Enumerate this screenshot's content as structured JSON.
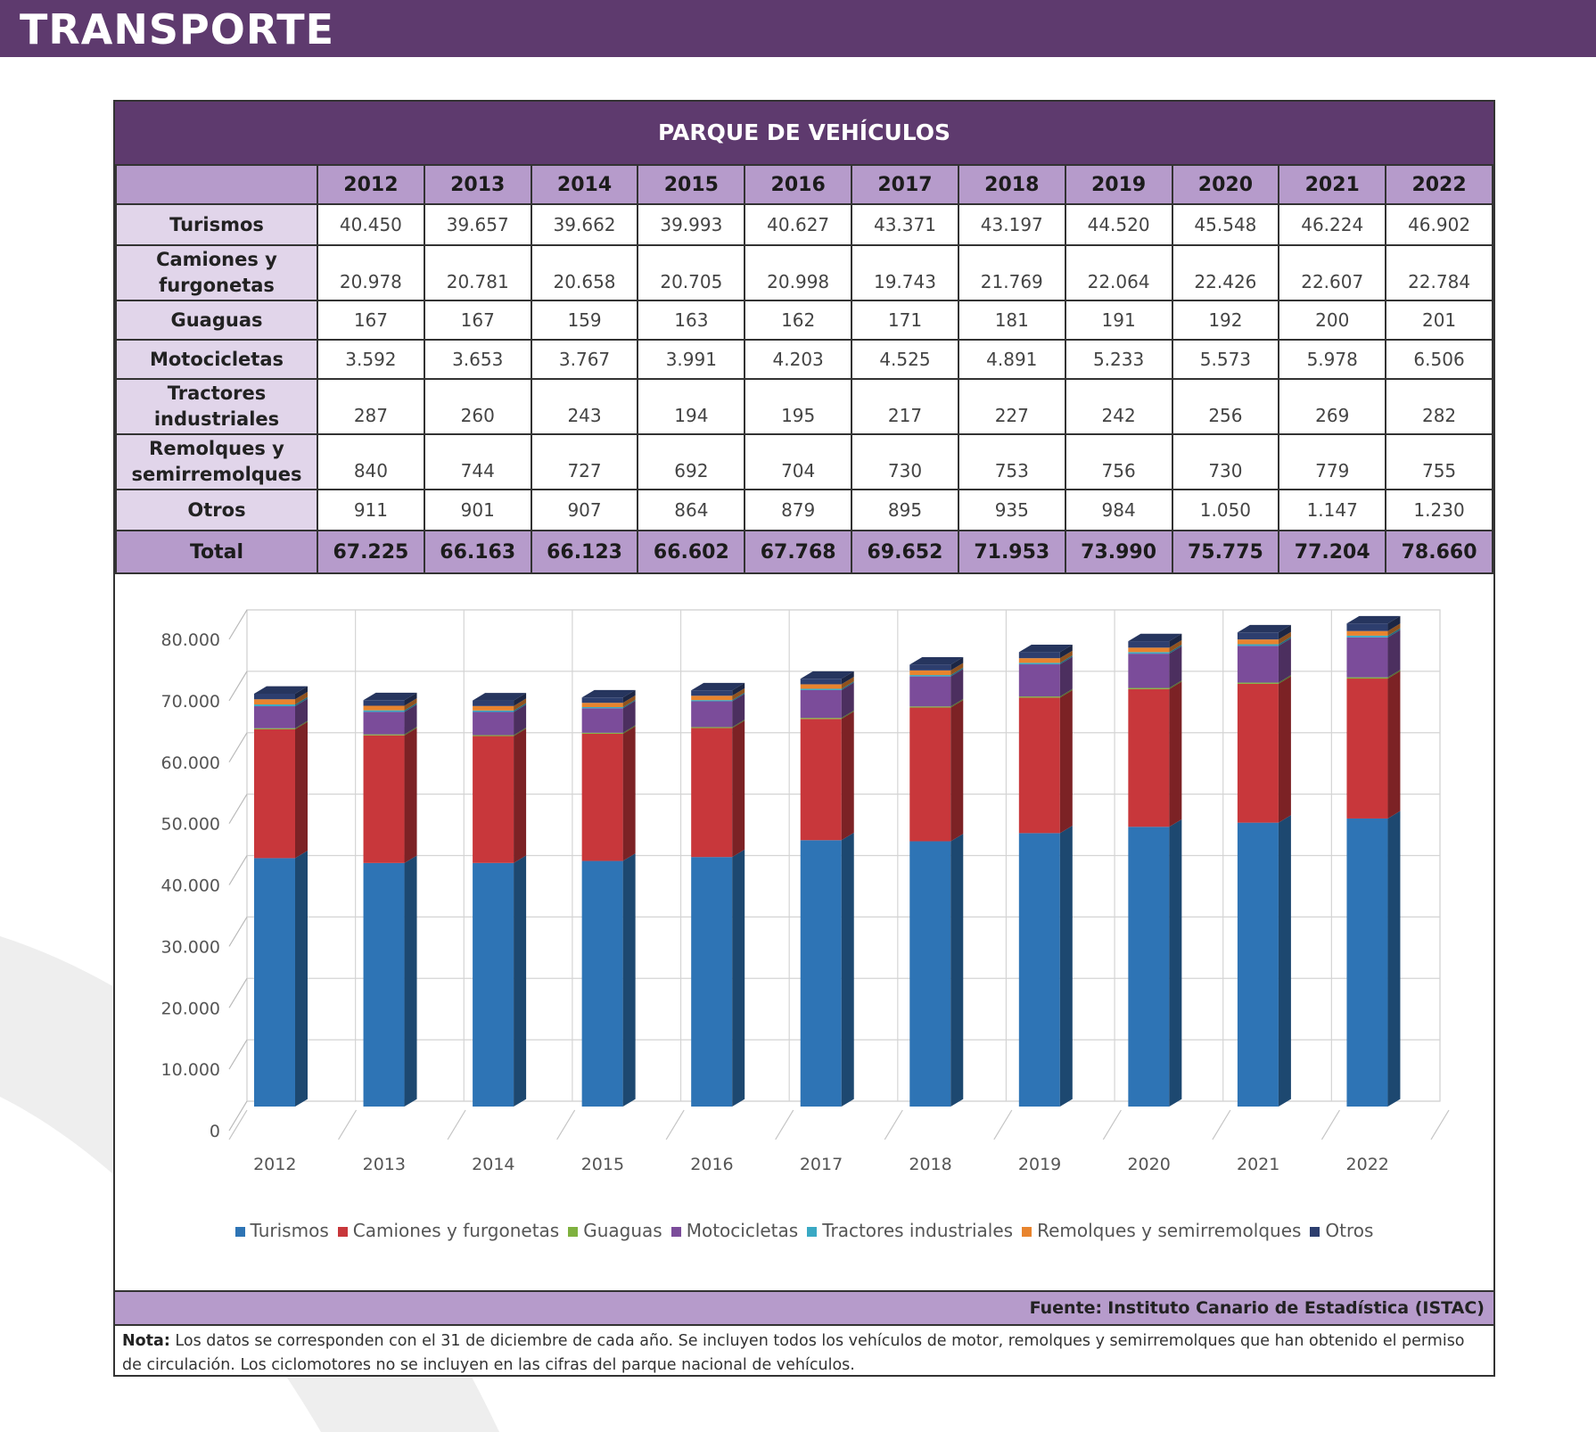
{
  "header": {
    "title": "TRANSPORTE"
  },
  "table": {
    "title": "PARQUE DE VEHÍCULOS",
    "years": [
      "2012",
      "2013",
      "2014",
      "2015",
      "2016",
      "2017",
      "2018",
      "2019",
      "2020",
      "2021",
      "2022"
    ],
    "rows": [
      {
        "label": "Turismos",
        "values": [
          "40.450",
          "39.657",
          "39.662",
          "39.993",
          "40.627",
          "43.371",
          "43.197",
          "44.520",
          "45.548",
          "46.224",
          "46.902"
        ]
      },
      {
        "label": "Camiones y furgonetas",
        "values": [
          "20.978",
          "20.781",
          "20.658",
          "20.705",
          "20.998",
          "19.743",
          "21.769",
          "22.064",
          "22.426",
          "22.607",
          "22.784"
        ]
      },
      {
        "label": "Guaguas",
        "values": [
          "167",
          "167",
          "159",
          "163",
          "162",
          "171",
          "181",
          "191",
          "192",
          "200",
          "201"
        ]
      },
      {
        "label": "Motocicletas",
        "values": [
          "3.592",
          "3.653",
          "3.767",
          "3.991",
          "4.203",
          "4.525",
          "4.891",
          "5.233",
          "5.573",
          "5.978",
          "6.506"
        ]
      },
      {
        "label": "Tractores industriales",
        "values": [
          "287",
          "260",
          "243",
          "194",
          "195",
          "217",
          "227",
          "242",
          "256",
          "269",
          "282"
        ]
      },
      {
        "label": "Remolques y semirremolques",
        "values": [
          "840",
          "744",
          "727",
          "692",
          "704",
          "730",
          "753",
          "756",
          "730",
          "779",
          "755"
        ]
      },
      {
        "label": "Otros",
        "values": [
          "911",
          "901",
          "907",
          "864",
          "879",
          "895",
          "935",
          "984",
          "1.050",
          "1.147",
          "1.230"
        ]
      }
    ],
    "total": {
      "label": "Total",
      "values": [
        "67.225",
        "66.163",
        "66.123",
        "66.602",
        "67.768",
        "69.652",
        "71.953",
        "73.990",
        "75.775",
        "77.204",
        "78.660"
      ]
    }
  },
  "chart_data": {
    "type": "bar",
    "stacked": true,
    "categories": [
      "2012",
      "2013",
      "2014",
      "2015",
      "2016",
      "2017",
      "2018",
      "2019",
      "2020",
      "2021",
      "2022"
    ],
    "series": [
      {
        "name": "Turismos",
        "color": "#2e74b5",
        "values": [
          40450,
          39657,
          39662,
          39993,
          40627,
          43371,
          43197,
          44520,
          45548,
          46224,
          46902
        ]
      },
      {
        "name": "Camiones y furgonetas",
        "color": "#c8373b",
        "values": [
          20978,
          20781,
          20658,
          20705,
          20998,
          19743,
          21769,
          22064,
          22426,
          22607,
          22784
        ]
      },
      {
        "name": "Guaguas",
        "color": "#7fb13f",
        "values": [
          167,
          167,
          159,
          163,
          162,
          171,
          181,
          191,
          192,
          200,
          201
        ]
      },
      {
        "name": "Motocicletas",
        "color": "#7b4c9a",
        "values": [
          3592,
          3653,
          3767,
          3991,
          4203,
          4525,
          4891,
          5233,
          5573,
          5978,
          6506
        ]
      },
      {
        "name": "Tractores industriales",
        "color": "#3aa9c4",
        "values": [
          287,
          260,
          243,
          194,
          195,
          217,
          227,
          242,
          256,
          269,
          282
        ]
      },
      {
        "name": "Remolques y semirremolques",
        "color": "#e8842e",
        "values": [
          840,
          744,
          727,
          692,
          704,
          730,
          753,
          756,
          730,
          779,
          755
        ]
      },
      {
        "name": "Otros",
        "color": "#2d3e6e",
        "values": [
          911,
          901,
          907,
          864,
          879,
          895,
          935,
          984,
          1050,
          1147,
          1230
        ]
      }
    ],
    "yticks": [
      "0",
      "10.000",
      "20.000",
      "30.000",
      "40.000",
      "50.000",
      "60.000",
      "70.000",
      "80.000"
    ],
    "ylim": [
      0,
      80000
    ],
    "grid": true,
    "legend_position": "bottom"
  },
  "footer": {
    "fuente_label": "Fuente:",
    "fuente_text": "Instituto Canario de Estadística (ISTAC)",
    "nota_label": "Nota:",
    "nota_text": "Los datos se corresponden con el 31 de diciembre de cada año. Se incluyen todos los vehículos de motor, remolques y semirremolques que han obtenido el permiso de circulación. Los ciclomotores no se incluyen en las cifras del parque nacional de vehículos."
  }
}
